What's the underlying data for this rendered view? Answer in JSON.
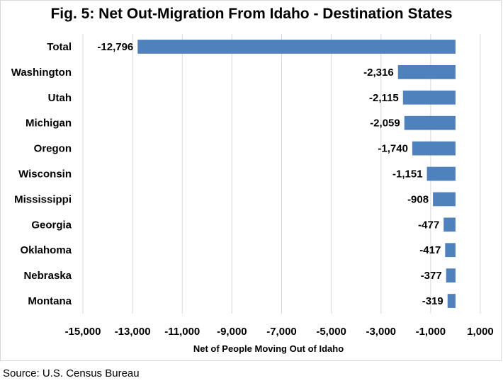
{
  "chart_data": {
    "type": "bar",
    "orientation": "horizontal",
    "title": "Fig. 5: Net Out-Migration From Idaho - Destination States",
    "xlabel": "Net of People Moving Out of Idaho",
    "ylabel": "",
    "categories": [
      "Total",
      "Washington",
      "Utah",
      "Michigan",
      "Oregon",
      "Wisconsin",
      "Mississippi",
      "Georgia",
      "Oklahoma",
      "Nebraska",
      "Montana"
    ],
    "values": [
      -12796,
      -2316,
      -2115,
      -2059,
      -1740,
      -1151,
      -908,
      -477,
      -417,
      -377,
      -319
    ],
    "data_labels": [
      "-12,796",
      "-2,316",
      "-2,115",
      "-2,059",
      "-1,740",
      "-1,151",
      "-908",
      "-477",
      "-417",
      "-377",
      "-319"
    ],
    "xlim": [
      -15000,
      1000
    ],
    "x_ticks": [
      -15000,
      -13000,
      -11000,
      -9000,
      -7000,
      -5000,
      -3000,
      -1000,
      1000
    ],
    "x_tick_labels": [
      "-15,000",
      "-13,000",
      "-11,000",
      "-9,000",
      "-7,000",
      "-5,000",
      "-3,000",
      "-1,000",
      "1,000"
    ],
    "grid": true,
    "bar_color": "#4f81bd",
    "grid_color": "#d9d9d9"
  },
  "source": "Source: U.S. Census Bureau"
}
